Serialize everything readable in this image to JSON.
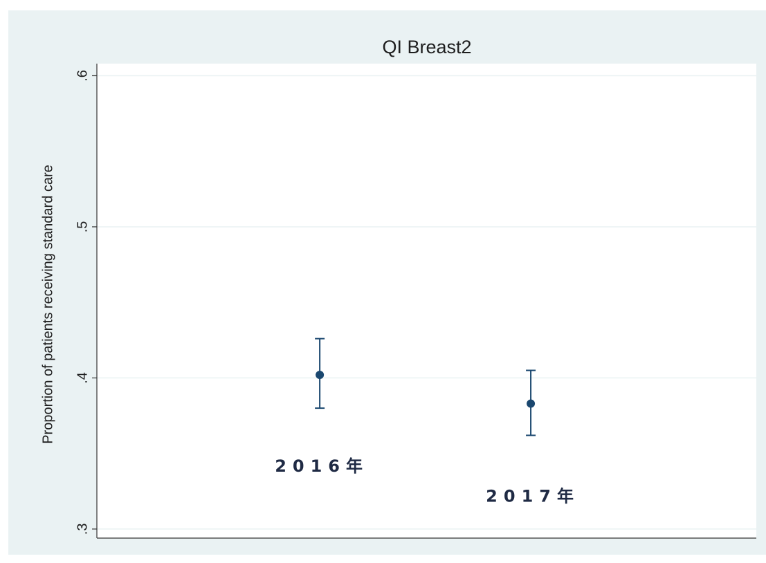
{
  "chart_data": {
    "type": "errorbar",
    "title": "QI Breast2",
    "y_label": "Proportion of patients receiving standard care",
    "categories": [
      "2016年",
      "2017年"
    ],
    "series": [
      {
        "color": "#1a476f",
        "values": [
          0.402,
          0.383
        ],
        "lower": [
          0.38,
          0.362
        ],
        "upper": [
          0.426,
          0.405
        ]
      }
    ],
    "ylim": [
      0.294,
      0.608
    ],
    "yticks": [
      {
        "value": 0.3,
        "label": ".3"
      },
      {
        "value": 0.4,
        "label": ".4"
      },
      {
        "value": 0.5,
        "label": ".5"
      },
      {
        "value": 0.6,
        "label": ".6"
      }
    ],
    "grid": true
  }
}
